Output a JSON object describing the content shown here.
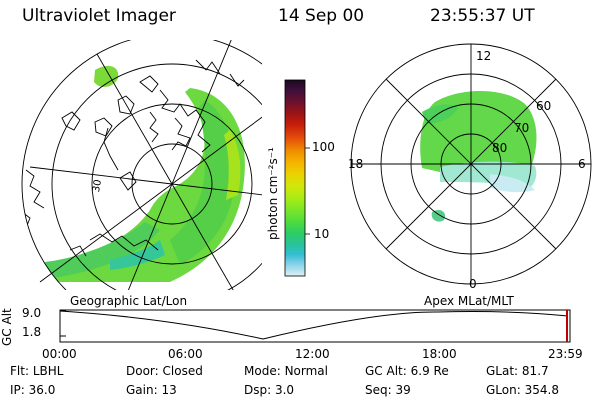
{
  "header": {
    "instrument": "Ultraviolet Imager",
    "date": "14 Sep 00",
    "time": "23:55:37 UT"
  },
  "colorbar": {
    "unit": "photon cm⁻²s⁻¹",
    "ticks": [
      "100",
      "10"
    ],
    "colors_top_to_bottom": [
      "#1a0a1e",
      "#3b0f3a",
      "#6b1030",
      "#9a1414",
      "#c81e0a",
      "#e6500a",
      "#f08c00",
      "#f5b400",
      "#ebd200",
      "#d2e60a",
      "#aaeb14",
      "#7de628",
      "#50dc3c",
      "#2dcd64",
      "#28c39b",
      "#32bed2",
      "#78cde6",
      "#b4e1ee",
      "#dcf0f5"
    ]
  },
  "left_map": {
    "label": "Geographic Lat/Lon",
    "tick_label": "30"
  },
  "right_map": {
    "label": "Apex  MLat/MLT",
    "mlt_labels": {
      "top": "12",
      "left": "18",
      "right": "6",
      "bottom": "0"
    },
    "mlat_labels": [
      "60",
      "70",
      "80"
    ]
  },
  "altitude_plot": {
    "ylabel": "GC Alt",
    "y_ticks": [
      "9.0",
      "1.8"
    ],
    "x_ticks": [
      "00:00",
      "06:00",
      "12:00",
      "18:00",
      "23:59"
    ]
  },
  "info_rows": [
    [
      {
        "label": "Flt:",
        "value": "LBHL"
      },
      {
        "label": "Door:",
        "value": "Closed"
      },
      {
        "label": "Mode:",
        "value": "Normal"
      },
      {
        "label": "GC Alt:",
        "value": "6.9 Re"
      },
      {
        "label": "GLat:",
        "value": "81.7"
      }
    ],
    [
      {
        "label": "IP:",
        "value": "36.0"
      },
      {
        "label": "Gain:",
        "value": "13"
      },
      {
        "label": "Dsp:",
        "value": "3.0"
      },
      {
        "label": "Seq:",
        "value": "39"
      },
      {
        "label": "GLon:",
        "value": "354.8"
      }
    ]
  ]
}
